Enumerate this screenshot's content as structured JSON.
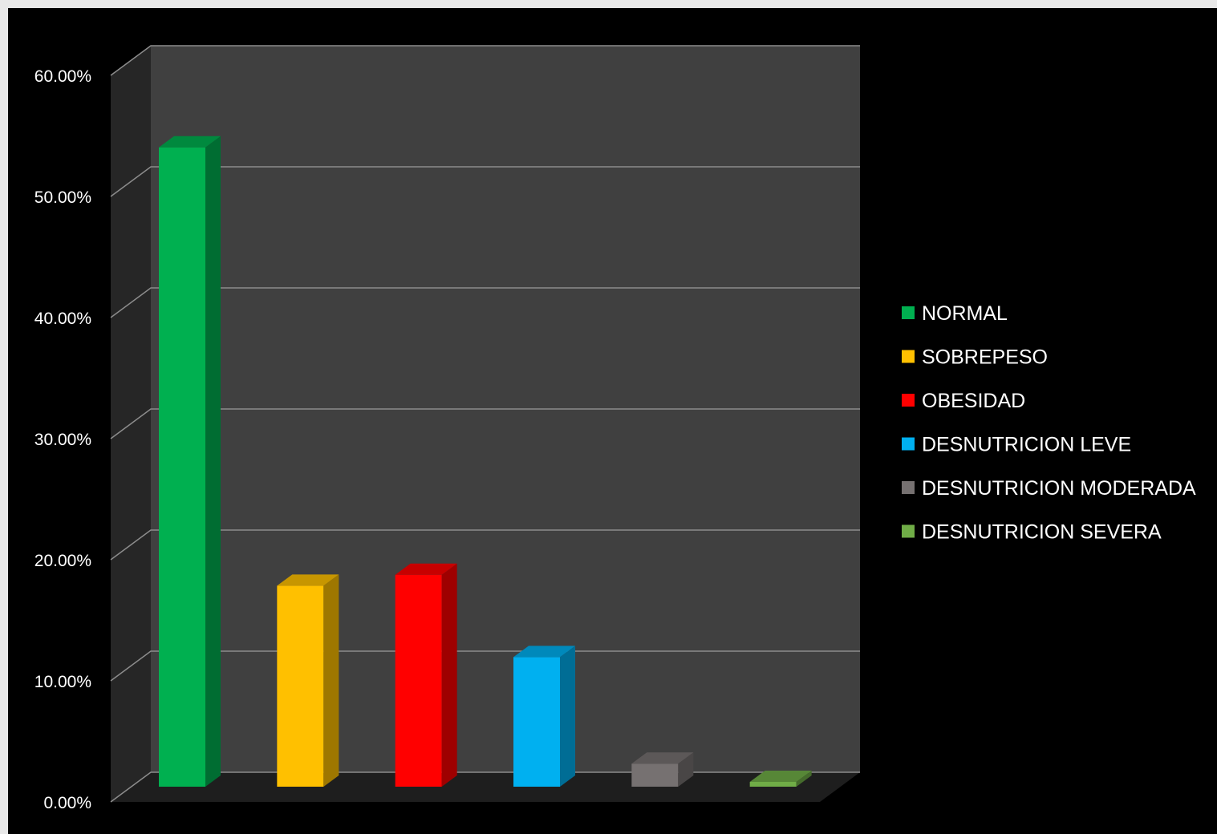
{
  "chart_data": {
    "type": "bar",
    "subtype": "3d-clustered-column",
    "title": "",
    "xlabel": "",
    "ylabel": "",
    "ylim": [
      0,
      0.6
    ],
    "yticks": [
      "0.00%",
      "10.00%",
      "20.00%",
      "30.00%",
      "40.00%",
      "50.00%",
      "60.00%"
    ],
    "grid": true,
    "legend_position": "right",
    "series": [
      {
        "name": "NORMAL",
        "value": 0.528,
        "color": "#00b050"
      },
      {
        "name": "SOBREPESO",
        "value": 0.166,
        "color": "#ffc000"
      },
      {
        "name": "OBESIDAD",
        "value": 0.175,
        "color": "#ff0000"
      },
      {
        "name": "DESNUTRICION LEVE",
        "value": 0.107,
        "color": "#00b0f0"
      },
      {
        "name": "DESNUTRICION MODERADA",
        "value": 0.019,
        "color": "#767171"
      },
      {
        "name": "DESNUTRICION SEVERA",
        "value": 0.004,
        "color": "#70ad47"
      }
    ],
    "colors": {
      "background": "#000000",
      "wall": "#404040",
      "side_wall": "#262626",
      "floor": "#1e1e1e",
      "gridline": "#8c8c8c",
      "text": "#ffffff"
    }
  }
}
